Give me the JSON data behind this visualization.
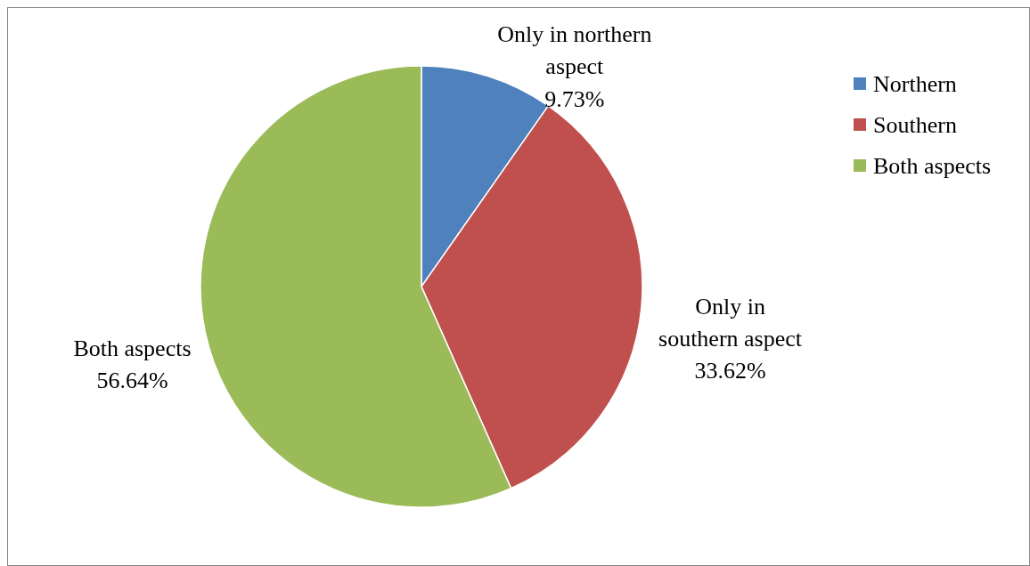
{
  "chart_data": {
    "type": "pie",
    "categories": [
      "Northern",
      "Southern",
      "Both aspects"
    ],
    "values": [
      9.73,
      33.62,
      56.64
    ],
    "colors": [
      "#4f81bd",
      "#c0504d",
      "#9bbb59"
    ],
    "value_labels": [
      "Only in northern\naspect\n9.73%",
      "Only in\nsouthern aspect\n33.62%",
      "Both aspects\n56.64%"
    ],
    "legend": "right"
  }
}
